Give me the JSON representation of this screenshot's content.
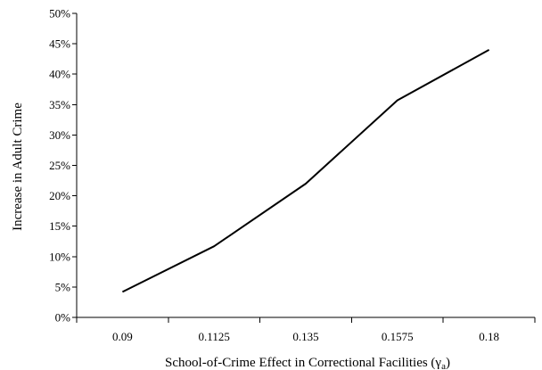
{
  "chart_data": {
    "type": "line",
    "title": "",
    "xlabel": "School-of-Crime Effect in Correctional Facilities (γ",
    "xlabel_subscript": "a",
    "xlabel_suffix": ")",
    "ylabel": "Increase in Adult Crime",
    "categories": [
      "0.09",
      "0.1125",
      "0.135",
      "0.1575",
      "0.18"
    ],
    "series": [
      {
        "values": [
          4.2,
          11.7,
          22.0,
          35.7,
          44.0
        ]
      }
    ],
    "y_ticks": [
      "0%",
      "5%",
      "10%",
      "15%",
      "20%",
      "25%",
      "30%",
      "35%",
      "40%",
      "45%",
      "50%"
    ],
    "ylim": [
      0,
      50
    ],
    "y_unit": "%",
    "grid": false,
    "legend": "none",
    "line_color": "#000000"
  }
}
